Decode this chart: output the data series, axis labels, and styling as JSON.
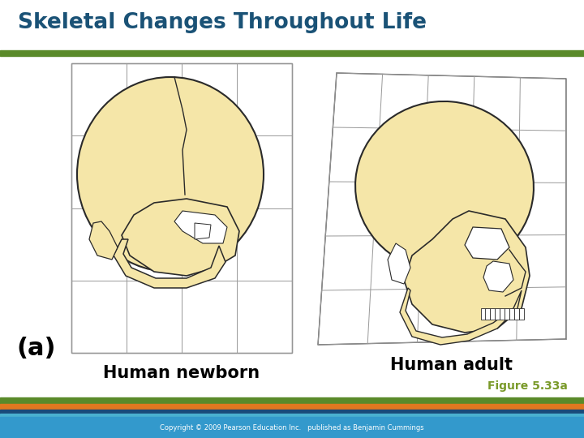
{
  "title": "Skeletal Changes Throughout Life",
  "title_color": "#1a5276",
  "title_fontsize": 19,
  "background_color": "#ffffff",
  "label1": "Human newborn",
  "label2": "Human adult",
  "label_fontsize": 15,
  "sublabel": "(a)",
  "sublabel_fontsize": 22,
  "figure_label": "Figure 5.33a",
  "figure_label_color": "#7a9a2a",
  "header_line_green": "#5a8a2a",
  "footer_stripe_green": "#5a8a2a",
  "footer_stripe_orange": "#e07820",
  "footer_stripe_darkblue": "#1a4a7a",
  "footer_stripe_lightblue": "#4ab0d0",
  "footer_bg": "#3399cc",
  "copyright_text": "Copyright © 2009 Pearson Education Inc.   published as Benjamin Cummings",
  "skull_fill": "#f5e6a8",
  "skull_line": "#2a2a2a",
  "grid_color": "#999999",
  "white": "#ffffff"
}
